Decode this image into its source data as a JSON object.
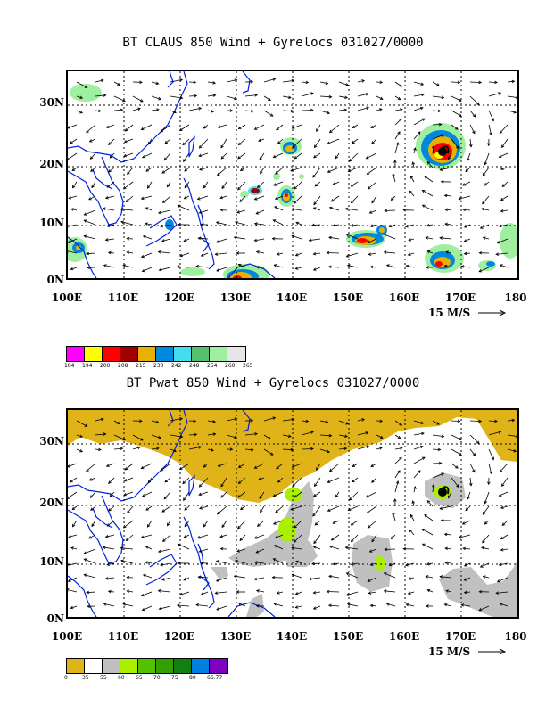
{
  "panel1": {
    "title": "BT CLAUS 850 Wind + Gyrelocs 031027/0000",
    "lat_labels": [
      "30N",
      "20N",
      "10N",
      "0N"
    ],
    "lon_labels": [
      "100E",
      "110E",
      "120E",
      "130E",
      "140E",
      "150E",
      "160E",
      "170E",
      "180"
    ],
    "ref_vector": "15 M/S",
    "legend_colors": [
      "#ff00ff",
      "#ffff00",
      "#ff0000",
      "#a00000",
      "#e8b000",
      "#0088dd",
      "#44ddee",
      "#55c070",
      "#a0eea0",
      "#e6e6e6"
    ],
    "legend_labels": [
      "184",
      "194",
      "200",
      "208",
      "215",
      "230",
      "242",
      "248",
      "254",
      "260",
      "265"
    ]
  },
  "panel2": {
    "title": "BT Pwat 850 Wind + Gyrelocs 031027/0000",
    "lat_labels": [
      "30N",
      "20N",
      "10N",
      "0N"
    ],
    "lon_labels": [
      "100E",
      "110E",
      "120E",
      "130E",
      "140E",
      "150E",
      "160E",
      "170E",
      "180"
    ],
    "ref_vector": "15 M/S",
    "legend_colors": [
      "#e0b418",
      "#ffffff",
      "#c0c0c0",
      "#aaf000",
      "#55c000",
      "#33a000",
      "#108010",
      "#0080e0",
      "#8000c0"
    ],
    "legend_labels": [
      "0",
      "35",
      "55",
      "60",
      "65",
      "70",
      "75",
      "80",
      "66.77"
    ]
  }
}
